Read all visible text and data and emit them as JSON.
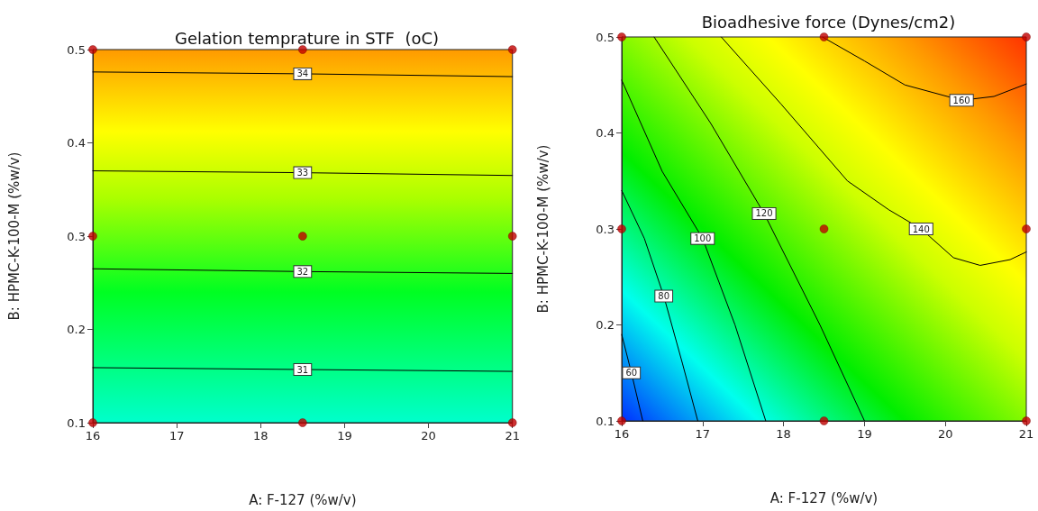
{
  "chart_data": [
    {
      "type": "line",
      "title": "Gelation temprature in STF  (oC)",
      "xlabel": "A: F-127 (%w/v)",
      "ylabel": "B: HPMC-K-100-M (%w/v)",
      "xlim": [
        16,
        21
      ],
      "xticks": [
        16,
        17,
        18,
        19,
        20,
        21
      ],
      "ylim": [
        0.1,
        0.5
      ],
      "yticks": [
        0.1,
        0.2,
        0.3,
        0.4,
        0.5
      ],
      "grid": false,
      "legend": false,
      "marker": "none",
      "line_style": "solid",
      "series": [
        {
          "name": "34",
          "color": "#000000",
          "x": [
            16,
            18.5,
            21
          ],
          "values": [
            0.476,
            0.474,
            0.471
          ]
        },
        {
          "name": "33",
          "color": "#000000",
          "x": [
            16,
            18.5,
            21
          ],
          "values": [
            0.37,
            0.368,
            0.365
          ]
        },
        {
          "name": "32",
          "color": "#000000",
          "x": [
            16,
            18.5,
            21
          ],
          "values": [
            0.265,
            0.262,
            0.26
          ]
        },
        {
          "name": "31",
          "color": "#000000",
          "x": [
            16,
            18.5,
            21
          ],
          "values": [
            0.159,
            0.157,
            0.155
          ]
        },
        {
          "type": "scatter",
          "marker": "circle",
          "color": "#c00000",
          "x": [
            16,
            18.5,
            21,
            16,
            18.5,
            21,
            16,
            18.5,
            21
          ],
          "values": [
            0.1,
            0.1,
            0.1,
            0.3,
            0.3,
            0.3,
            0.5,
            0.5,
            0.5
          ]
        }
      ]
    },
    {
      "type": "line",
      "title": "Bioadhesive force (Dynes/cm2)",
      "xlabel": "A: F-127 (%w/v)",
      "ylabel": "B: HPMC-K-100-M (%w/v)",
      "xlim": [
        16,
        21
      ],
      "xticks": [
        16,
        17,
        18,
        19,
        20,
        21
      ],
      "ylim": [
        0.1,
        0.5
      ],
      "yticks": [
        0.1,
        0.2,
        0.3,
        0.4,
        0.5
      ],
      "grid": false,
      "legend": false,
      "marker": "none",
      "line_style": "solid",
      "series": [
        {
          "name": "60",
          "color": "#000000",
          "x": [
            16,
            16.12,
            16.26
          ],
          "values": [
            0.19,
            0.15,
            0.1
          ]
        },
        {
          "name": "80",
          "color": "#000000",
          "x": [
            16,
            16.28,
            16.52,
            16.75,
            16.94
          ],
          "values": [
            0.34,
            0.29,
            0.23,
            0.16,
            0.1
          ]
        },
        {
          "name": "100",
          "color": "#000000",
          "x": [
            16,
            16.5,
            17,
            17.4,
            17.78
          ],
          "values": [
            0.455,
            0.36,
            0.29,
            0.2,
            0.1
          ]
        },
        {
          "name": "120",
          "color": "#000000",
          "x": [
            16.4,
            17.1,
            17.76,
            18.45,
            19.0
          ],
          "values": [
            0.5,
            0.41,
            0.316,
            0.2,
            0.1
          ]
        },
        {
          "name": "140",
          "color": "#000000",
          "x": [
            17.23,
            17.97,
            18.79,
            19.3,
            19.7,
            20.1,
            20.43,
            20.8,
            21
          ],
          "values": [
            0.5,
            0.43,
            0.35,
            0.32,
            0.3,
            0.27,
            0.262,
            0.268,
            0.276
          ]
        },
        {
          "name": "160",
          "color": "#000000",
          "x": [
            18.48,
            19,
            19.5,
            20.2,
            20.6,
            21
          ],
          "values": [
            0.5,
            0.475,
            0.45,
            0.434,
            0.438,
            0.451
          ]
        },
        {
          "type": "scatter",
          "marker": "circle",
          "color": "#c00000",
          "x": [
            16,
            18.5,
            21,
            16,
            18.5,
            21,
            16,
            18.5,
            21
          ],
          "values": [
            0.1,
            0.1,
            0.1,
            0.3,
            0.3,
            0.3,
            0.5,
            0.5,
            0.5
          ]
        }
      ]
    }
  ]
}
